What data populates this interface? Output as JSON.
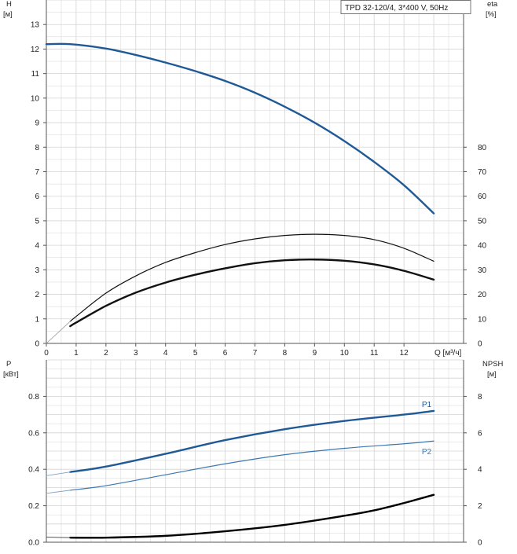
{
  "colors": {
    "head": "#1f5a96",
    "p1": "#1f5a96",
    "p2": "#3a78b5",
    "eta": "#111111",
    "npsh": "#000000",
    "grid": "#d4d4d4",
    "axis": "#555555"
  },
  "chart_data": [
    {
      "type": "line",
      "title": "TPD 32-120/4, 3*400 V, 50Hz",
      "x_label": "Q [м³/ч]",
      "x_ticks": [
        "0",
        "1",
        "2",
        "3",
        "4",
        "5",
        "6",
        "7",
        "8",
        "9",
        "10",
        "11",
        "12"
      ],
      "xlim": [
        0,
        14
      ],
      "left_axis": {
        "label_top": "H",
        "label_unit": "[м]",
        "ticks": [
          "0",
          "1",
          "2",
          "3",
          "4",
          "5",
          "6",
          "7",
          "8",
          "9",
          "10",
          "11",
          "12",
          "13"
        ],
        "ylim": [
          0,
          14
        ]
      },
      "right_axis": {
        "label_top": "eta",
        "label_unit": "[%]",
        "ticks": [
          "0",
          "10",
          "20",
          "30",
          "40",
          "50",
          "60",
          "70",
          "80"
        ],
        "ylim": [
          0,
          140
        ]
      },
      "grid": true,
      "series": [
        {
          "key": "head",
          "axis": "left",
          "width": 2.4,
          "x": [
            0,
            0.8,
            2,
            3,
            4,
            5,
            6,
            7,
            8,
            9,
            10,
            11,
            12,
            13
          ],
          "y": [
            12.2,
            12.2,
            12.02,
            11.76,
            11.45,
            11.1,
            10.7,
            10.22,
            9.65,
            9.0,
            8.25,
            7.4,
            6.45,
            5.3
          ]
        },
        {
          "key": "eta_pump",
          "axis": "right",
          "width": 1.2,
          "x": [
            0.8,
            1,
            2,
            3,
            4,
            5,
            6,
            7,
            8,
            9,
            10,
            11,
            12,
            13
          ],
          "y": [
            9,
            11,
            20.5,
            27.5,
            33,
            37,
            40.3,
            42.6,
            44,
            44.5,
            44,
            42.3,
            38.8,
            33.5
          ]
        },
        {
          "key": "eta_total",
          "axis": "right",
          "width": 2.4,
          "x": [
            0.8,
            1,
            2,
            3,
            4,
            5,
            6,
            7,
            8,
            9,
            10,
            11,
            12,
            13
          ],
          "y": [
            7,
            8.5,
            15.3,
            20.7,
            24.8,
            28,
            30.6,
            32.7,
            33.9,
            34.2,
            33.7,
            32.2,
            29.6,
            26
          ]
        },
        {
          "key": "head_ext",
          "axis": "left",
          "width": 1.2,
          "x": [
            0,
            0.8
          ],
          "y": [
            12.2,
            12.2
          ]
        },
        {
          "key": "eta_ext",
          "axis": "right",
          "width": 0.8,
          "color": "#999999",
          "x": [
            0,
            0.8
          ],
          "y": [
            0,
            9
          ]
        }
      ]
    },
    {
      "type": "line",
      "left_axis": {
        "label_top": "P",
        "label_unit": "[кВт]",
        "ticks": [
          "0.0",
          "0.2",
          "0.4",
          "0.6",
          "0.8"
        ],
        "ylim": [
          0,
          1.0
        ]
      },
      "right_axis": {
        "label_top": "NPSH",
        "label_unit": "[м]",
        "ticks": [
          "0",
          "2",
          "4",
          "6",
          "8"
        ],
        "ylim": [
          0,
          10
        ]
      },
      "xlim": [
        0,
        14
      ],
      "grid": true,
      "series": [
        {
          "key": "p1",
          "name": "P1",
          "axis": "left",
          "width": 2.4,
          "x": [
            0.8,
            2,
            4,
            6,
            8,
            10,
            12,
            13
          ],
          "y": [
            0.385,
            0.415,
            0.485,
            0.56,
            0.62,
            0.665,
            0.7,
            0.72
          ]
        },
        {
          "key": "p2",
          "name": "P2",
          "axis": "left",
          "width": 1.2,
          "x": [
            0.8,
            2,
            4,
            6,
            8,
            10,
            12,
            13
          ],
          "y": [
            0.285,
            0.31,
            0.37,
            0.43,
            0.48,
            0.515,
            0.54,
            0.555
          ]
        },
        {
          "key": "npsh",
          "axis": "right",
          "width": 2.4,
          "x": [
            0.8,
            2,
            4,
            6,
            8,
            10,
            11,
            12,
            13
          ],
          "y": [
            0.25,
            0.25,
            0.35,
            0.6,
            0.95,
            1.45,
            1.75,
            2.15,
            2.6
          ]
        },
        {
          "key": "p1_ext",
          "axis": "left",
          "width": 0.9,
          "color": "#7fa3c8",
          "x": [
            0,
            0.8
          ],
          "y": [
            0.365,
            0.385
          ]
        },
        {
          "key": "p2_ext",
          "axis": "left",
          "width": 0.9,
          "color": "#7fa3c8",
          "x": [
            0,
            0.8
          ],
          "y": [
            0.268,
            0.285
          ]
        },
        {
          "key": "npsh_ext",
          "axis": "right",
          "width": 1.0,
          "color": "#555555",
          "x": [
            0,
            0.8
          ],
          "y": [
            0.28,
            0.25
          ]
        }
      ]
    }
  ]
}
